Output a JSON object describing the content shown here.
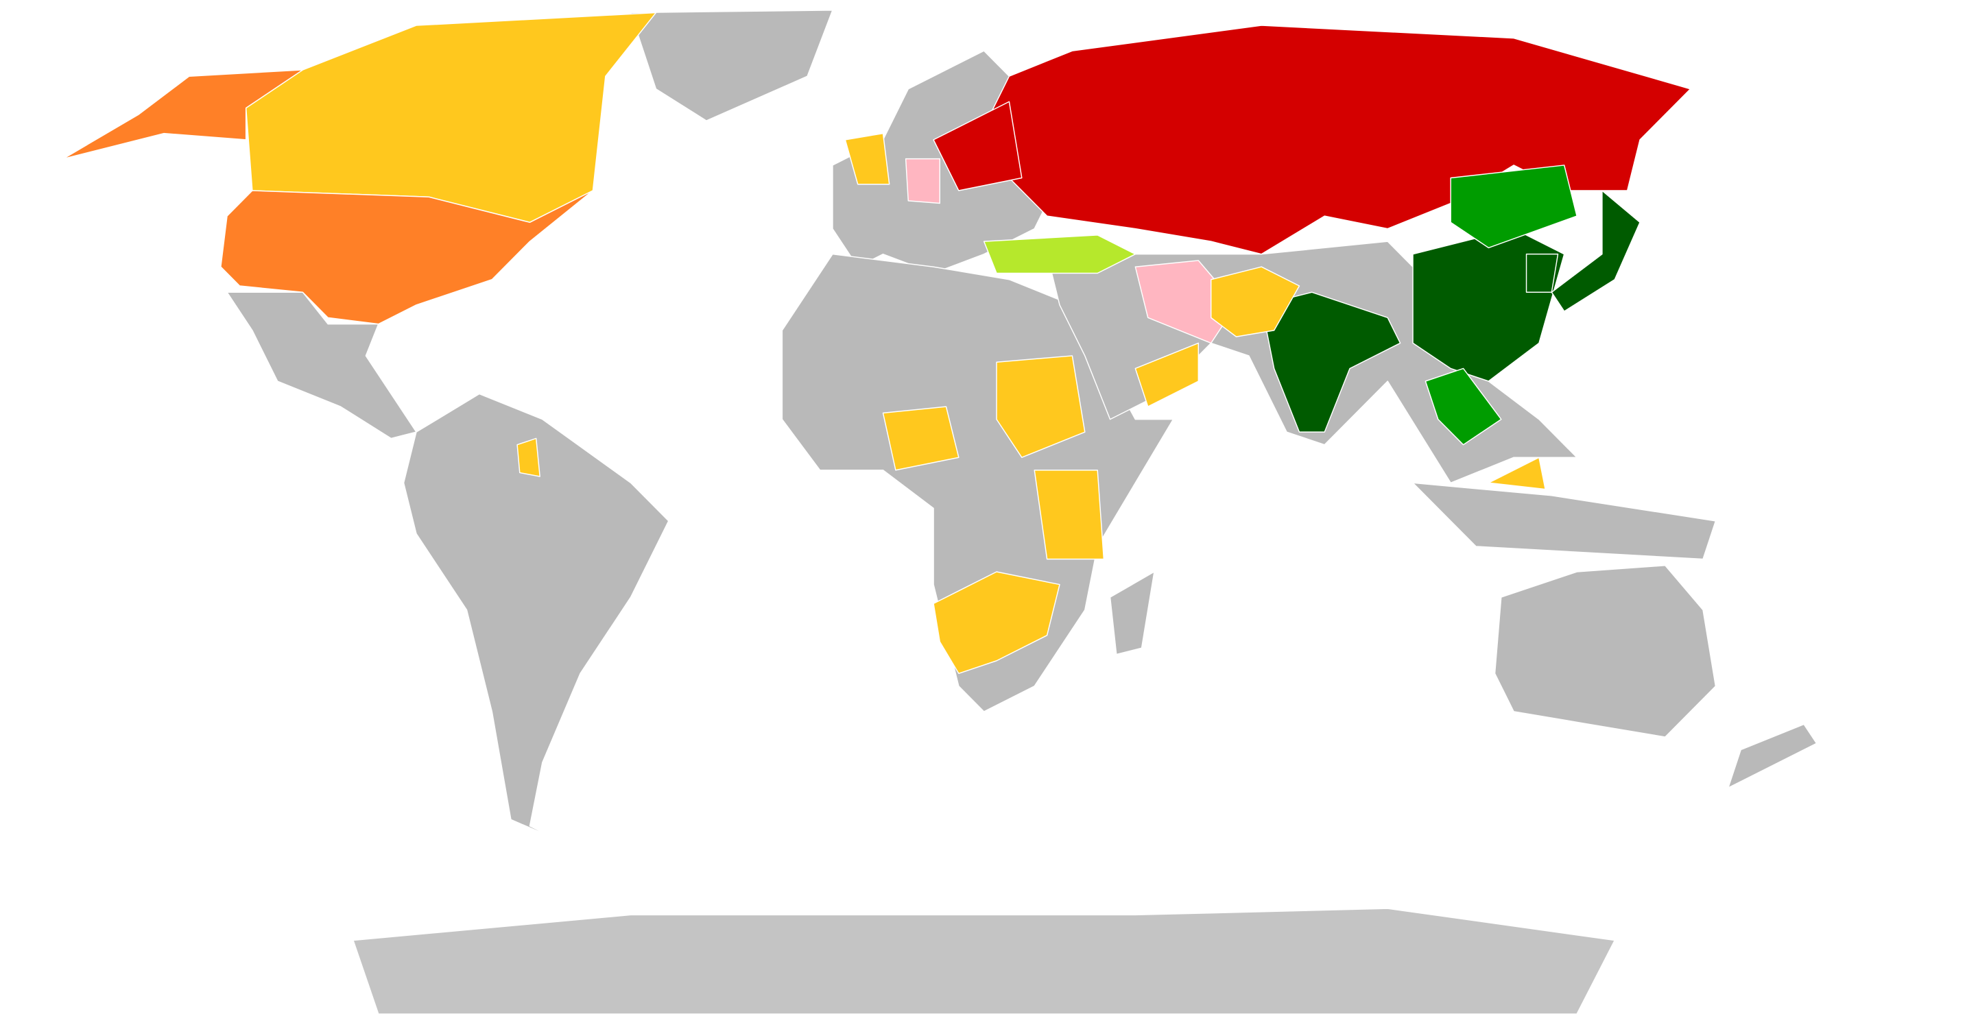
{
  "map": {
    "background": "#ffffff",
    "border_color": "#ffffff",
    "category_colors": {
      "default": "#b9b9b9",
      "antarctica": "#c4c4c4",
      "red": "#d40000",
      "orange": "#ff8027",
      "yellow": "#ffc81e",
      "pink": "#ffb6c1",
      "lime": "#b6e82c",
      "green": "#009c00",
      "dark_green": "#005b00"
    }
  }
}
